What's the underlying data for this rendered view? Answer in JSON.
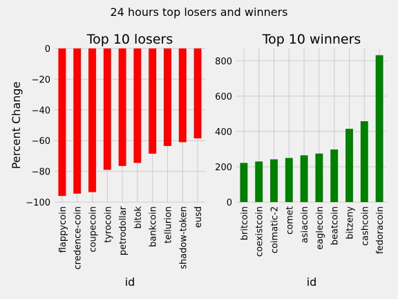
{
  "figure": {
    "suptitle": "24 hours top losers and winners",
    "background": "#f0f0f0",
    "grid_color": "#cbcbcb"
  },
  "chart_data": [
    {
      "type": "bar",
      "title": "Top 10 losers",
      "xlabel": "id",
      "ylabel": "Percent Change",
      "categories": [
        "flappycoin",
        "credence-coin",
        "coupecoin",
        "tyrocoin",
        "petrodollar",
        "bitok",
        "bankcoin",
        "tellurion",
        "shadow-token",
        "eusd"
      ],
      "values": [
        -96,
        -94.5,
        -93.5,
        -79,
        -76.5,
        -74.5,
        -68.5,
        -63.5,
        -61,
        -58.5
      ],
      "ylim": [
        -100,
        0
      ],
      "yticks": [
        0,
        -20,
        -40,
        -60,
        -80,
        -100
      ],
      "ytick_labels": [
        "0",
        "−20",
        "−40",
        "−60",
        "−80",
        "−100"
      ],
      "color": "#ff0000",
      "grid": true
    },
    {
      "type": "bar",
      "title": "Top 10 winners",
      "xlabel": "id",
      "ylabel": "",
      "categories": [
        "britcoin",
        "coexistcoin",
        "coimatic-2",
        "comet",
        "asiacoin",
        "eaglecoin",
        "beatcoin",
        "bitzeny",
        "cashcoin",
        "fedoracoin"
      ],
      "values": [
        222,
        230,
        242,
        250,
        265,
        275,
        298,
        415,
        458,
        832
      ],
      "ylim": [
        0,
        870
      ],
      "yticks": [
        0,
        200,
        400,
        600,
        800
      ],
      "ytick_labels": [
        "0",
        "200",
        "400",
        "600",
        "800"
      ],
      "color": "#008000",
      "grid": true
    }
  ]
}
